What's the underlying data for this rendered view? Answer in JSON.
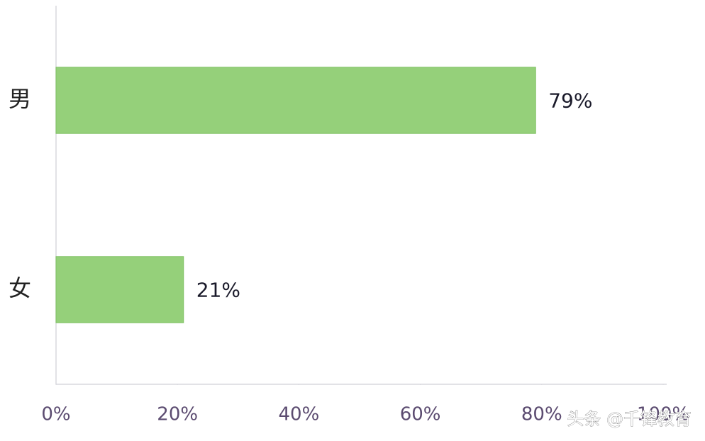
{
  "chart_data": {
    "type": "bar",
    "orientation": "horizontal",
    "categories": [
      "男",
      "女"
    ],
    "values": [
      79,
      21
    ],
    "value_labels": [
      "79%",
      "21%"
    ],
    "color": "#95d07a",
    "xlim": [
      0,
      100
    ],
    "xticks": [
      {
        "value": 0,
        "label": "0%"
      },
      {
        "value": 20,
        "label": "20%"
      },
      {
        "value": 40,
        "label": "40%"
      },
      {
        "value": 60,
        "label": "60%"
      },
      {
        "value": 80,
        "label": "80%"
      },
      {
        "value": 100,
        "label": "100%"
      }
    ],
    "grid": false
  },
  "watermark": "头条 @千锋教育"
}
